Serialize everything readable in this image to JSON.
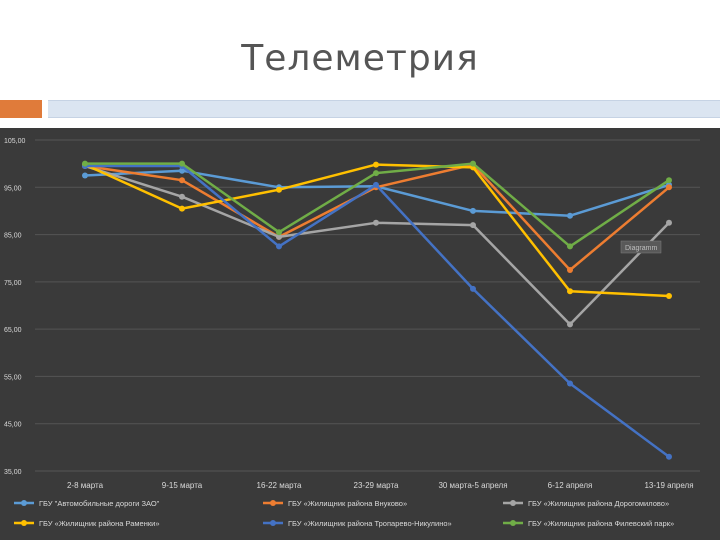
{
  "slide": {
    "title": "Телеметрия"
  },
  "colors": {
    "background": "#3a3a3a",
    "grid": "#555555",
    "text": "#d9d9d9",
    "accent_orange": "#e07b3a",
    "accent_blue": "#dbe5f1"
  },
  "chart_data": {
    "type": "line",
    "title": "",
    "xlabel": "",
    "ylabel": "",
    "ylim": [
      35,
      105
    ],
    "yticks": [
      "105,00",
      "95,00",
      "85,00",
      "75,00",
      "65,00",
      "55,00",
      "45,00",
      "35,00"
    ],
    "grid": true,
    "legend_position": "bottom",
    "categories": [
      "2-8 марта",
      "9-15 марта",
      "16-22 марта",
      "23-29 марта",
      "30 марта-5 апреля",
      "6-12 апреля",
      "13-19 апреля"
    ],
    "series": [
      {
        "name": "ГБУ \"Автомобильные дороги ЗАО\"",
        "color": "#5b9bd5",
        "values": [
          97.5,
          98.5,
          95,
          95.2,
          90,
          89,
          95.5
        ]
      },
      {
        "name": "ГБУ «Жилищник района Внуково»",
        "color": "#ed7d31",
        "values": [
          99.5,
          96.5,
          84.5,
          95,
          99.8,
          77.5,
          95
        ]
      },
      {
        "name": "ГБУ «Жилищник района Дорогомилово»",
        "color": "#a5a5a5",
        "values": [
          99.5,
          93,
          84.5,
          87.5,
          87,
          66,
          87.5
        ]
      },
      {
        "name": "ГБУ «Жилищник района Раменки»",
        "color": "#ffc000",
        "values": [
          99.8,
          90.5,
          94.5,
          99.8,
          99.2,
          73,
          72
        ]
      },
      {
        "name": "ГБУ «Жилищник района Тропарево-Никулино»",
        "color": "#4472c4",
        "values": [
          99.5,
          99.5,
          82.5,
          95.5,
          73.5,
          53.5,
          38
        ]
      },
      {
        "name": "ГБУ «Жилищник района Филевский парк»",
        "color": "#70ad47",
        "values": [
          100,
          100,
          85.5,
          98,
          100,
          82.5,
          96.5
        ]
      }
    ],
    "annotation": "Diagramm"
  }
}
